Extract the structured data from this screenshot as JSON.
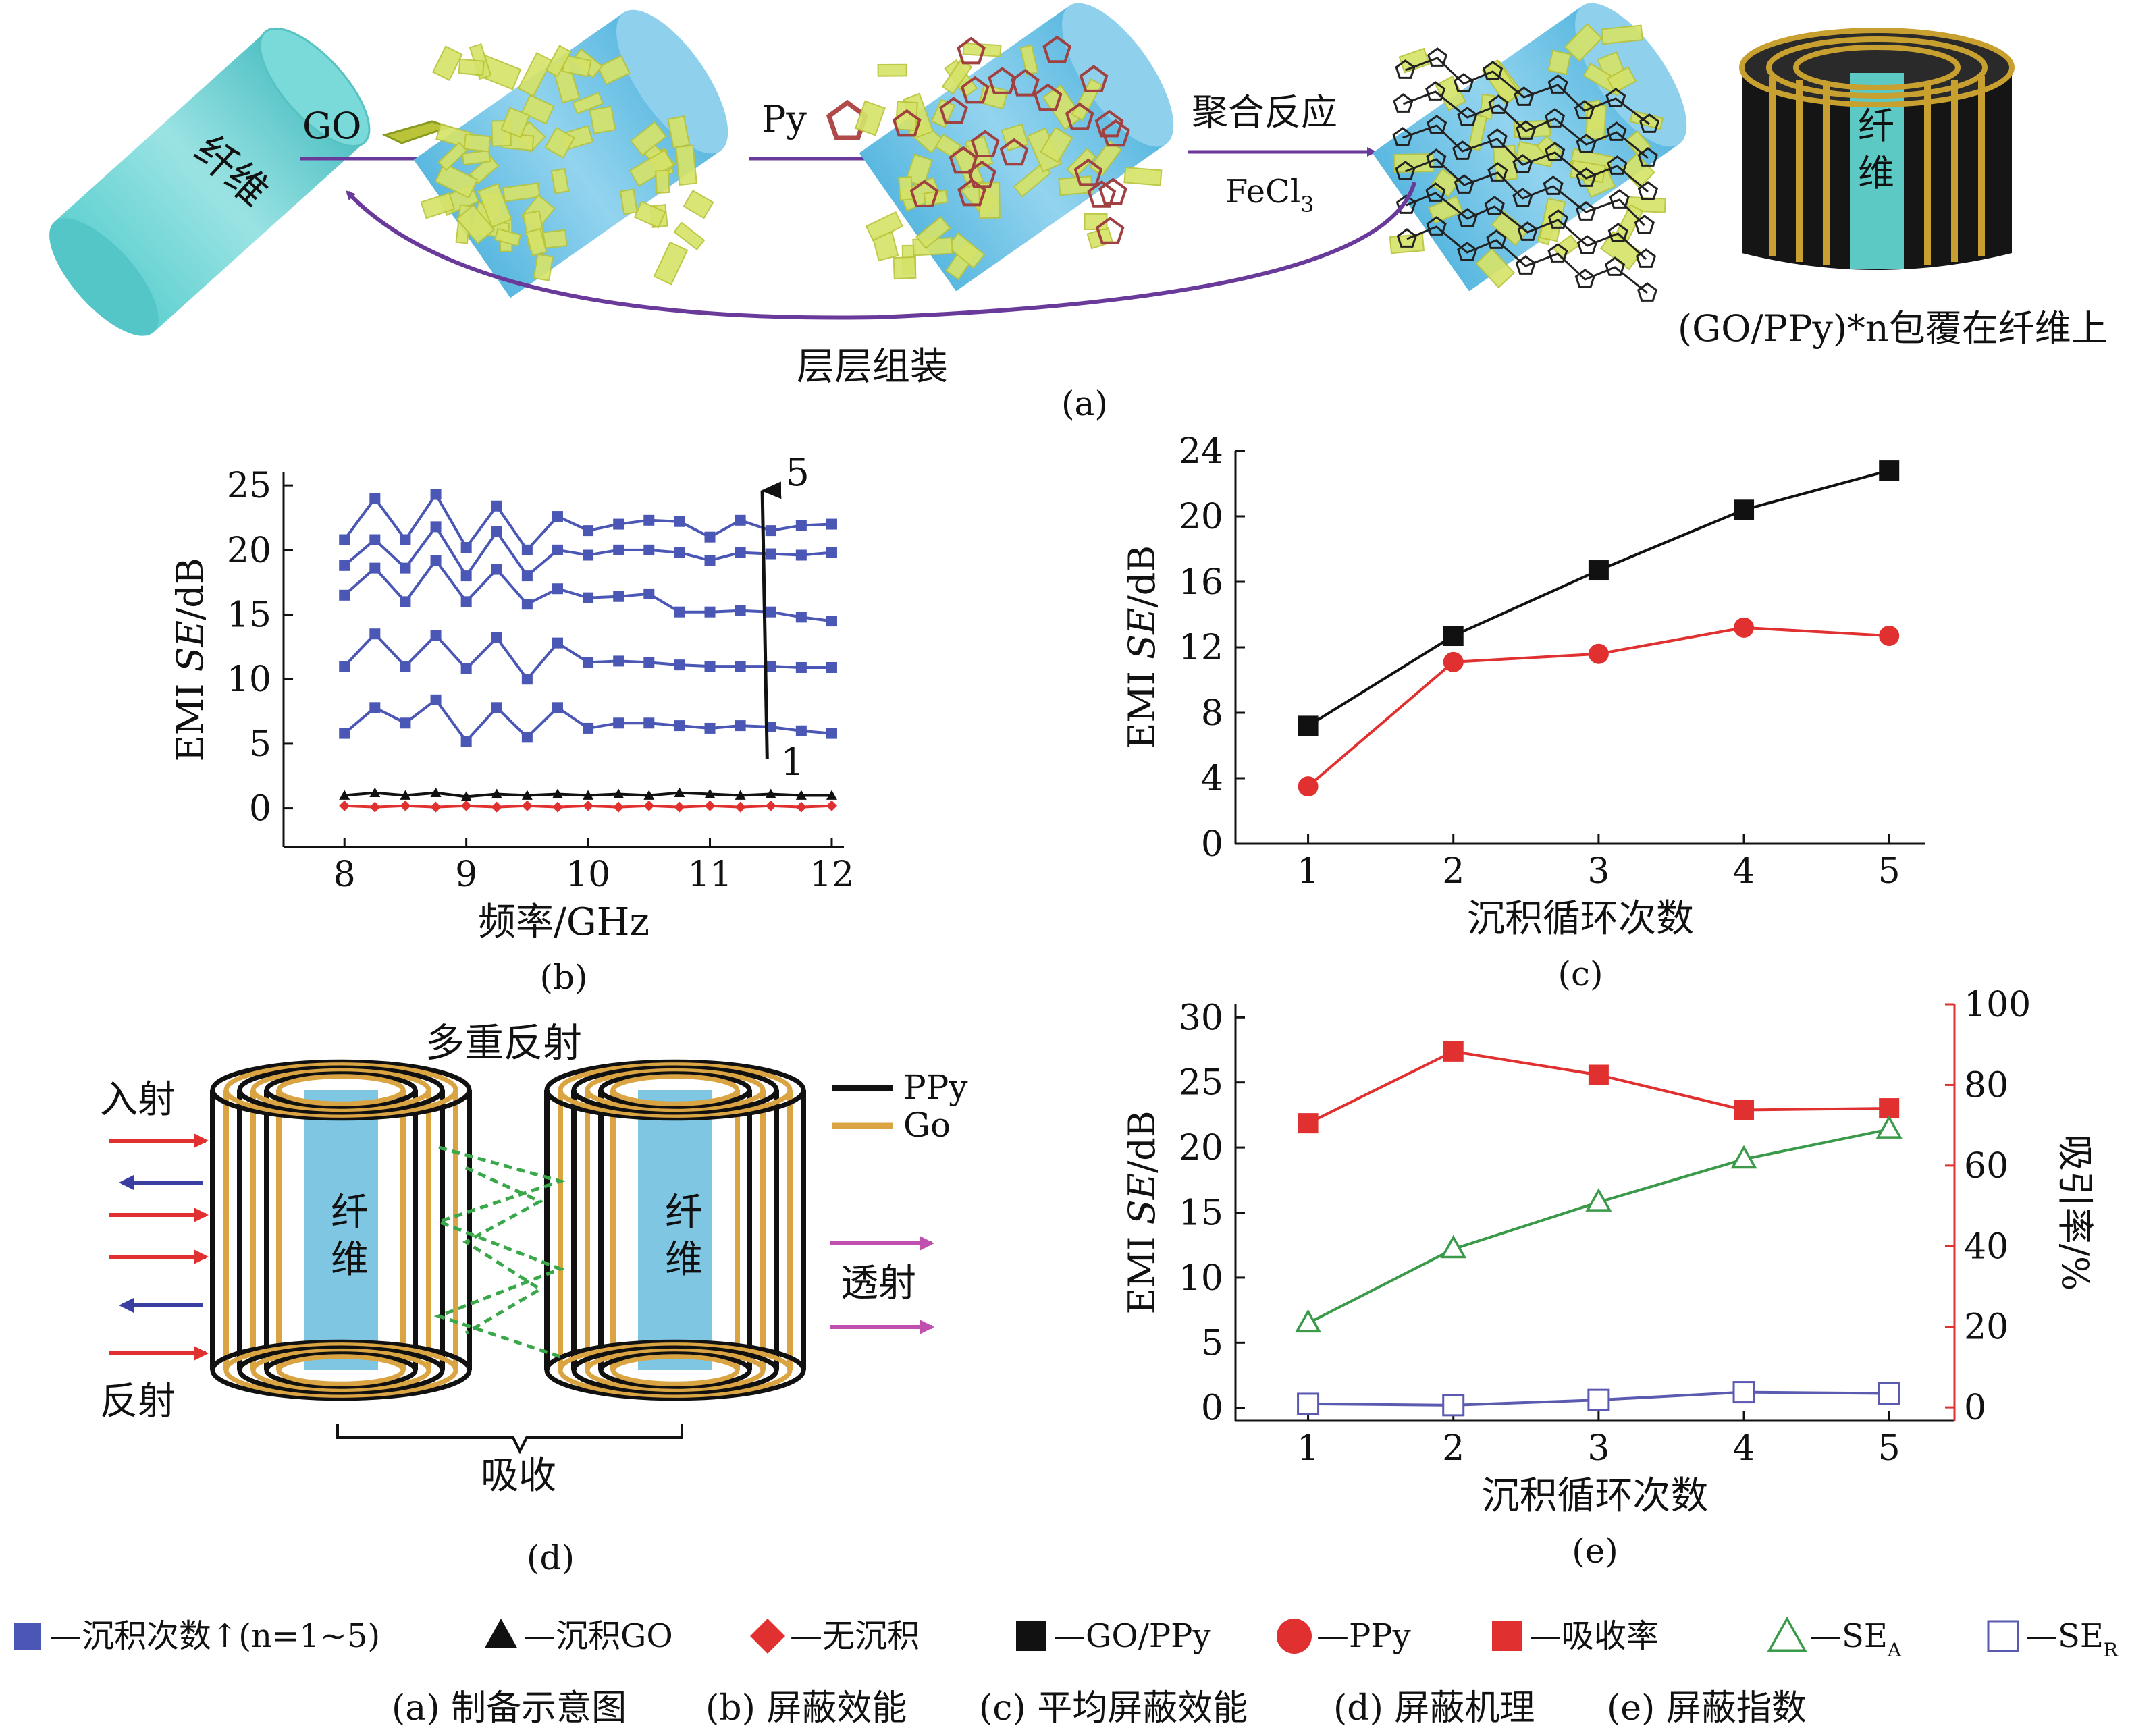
{
  "panel_a": {
    "caption": "(a)",
    "fiber_label": "纤维",
    "go_label": "GO",
    "py_label": "Py",
    "reaction_label": "聚合反应",
    "catalyst_label": "FeCl",
    "catalyst_sub": "3",
    "lbl_label": "层层组装",
    "coating_label": "(GO/PPy)*n包覆在纤维上",
    "core_label": "纤维"
  },
  "panel_d": {
    "caption": "(d)",
    "title": "多重反射",
    "incident": "入射",
    "reflect": "反射",
    "transmit": "透射",
    "absorb": "吸收",
    "fiber_left": "纤维",
    "fiber_right": "纤维",
    "legend_ppy": "PPy",
    "legend_go": "Go",
    "colors": {
      "ppy": "#111111",
      "go": "#d9a441",
      "fiber": "#7fc6e3",
      "arrow_in": "#e03030",
      "arrow_back": "#3a3ea0",
      "arrow_out": "#c04fb0",
      "inner_wave": "#3aa84a"
    }
  },
  "legend_row": {
    "items": [
      {
        "marker": "square-filled-blue",
        "text": "—沉积次数↑(n=1~5)"
      },
      {
        "marker": "triangle-filled-black",
        "text": "—沉积GO"
      },
      {
        "marker": "diamond-filled-red",
        "text": "—无沉积"
      },
      {
        "marker": "square-filled-black",
        "text": "—GO/PPy"
      },
      {
        "marker": "circle-filled-red",
        "text": "—PPy"
      },
      {
        "marker": "square-filled-red",
        "text": "—吸收率"
      },
      {
        "marker": "triangle-open-green",
        "text": "—SE",
        "sub": "A"
      },
      {
        "marker": "square-open-blue",
        "text": "—SE",
        "sub": "R"
      }
    ]
  },
  "captions_row": [
    "(a) 制备示意图",
    "(b) 屏蔽效能",
    "(c) 平均屏蔽效能",
    "(d) 屏蔽机理",
    "(e) 屏蔽指数"
  ],
  "chart_data": [
    {
      "id": "b",
      "type": "line",
      "caption": "(b)",
      "xlabel": "频率/GHz",
      "ylabel_pre": "EMI ",
      "ylabel_it": "SE",
      "ylabel_post": "/dB",
      "xlim": [
        7.5,
        12.1
      ],
      "ylim": [
        -3,
        26
      ],
      "xticks": [
        8,
        9,
        10,
        11,
        12
      ],
      "yticks": [
        0,
        5,
        10,
        15,
        20,
        25
      ],
      "arrow_top_label": "5",
      "arrow_bottom_label": "1",
      "x": [
        8.0,
        8.25,
        8.5,
        8.75,
        9.0,
        9.25,
        9.5,
        9.75,
        10.0,
        10.25,
        10.5,
        10.75,
        11.0,
        11.25,
        11.5,
        11.75,
        12.0
      ],
      "series": [
        {
          "name": "5",
          "color": "#4a57b5",
          "marker": "square",
          "values": [
            20.8,
            24.0,
            20.8,
            24.3,
            20.2,
            23.4,
            20.0,
            22.6,
            21.5,
            22.0,
            22.3,
            22.2,
            21.0,
            22.3,
            21.5,
            21.9,
            22.0
          ]
        },
        {
          "name": "4",
          "color": "#4a57b5",
          "marker": "square",
          "values": [
            18.8,
            20.8,
            18.6,
            21.8,
            18.0,
            21.4,
            18.0,
            20.0,
            19.6,
            20.0,
            20.0,
            19.8,
            19.2,
            19.8,
            19.7,
            19.6,
            19.8
          ]
        },
        {
          "name": "3",
          "color": "#4a57b5",
          "marker": "square",
          "values": [
            16.5,
            18.6,
            16.0,
            19.2,
            16.0,
            18.5,
            15.8,
            17.0,
            16.3,
            16.4,
            16.6,
            15.2,
            15.2,
            15.3,
            15.2,
            14.8,
            14.5
          ]
        },
        {
          "name": "2",
          "color": "#4a57b5",
          "marker": "square",
          "values": [
            11.0,
            13.5,
            11.0,
            13.4,
            10.8,
            13.2,
            10.0,
            12.8,
            11.3,
            11.4,
            11.3,
            11.1,
            11.0,
            11.0,
            11.0,
            10.9,
            10.9
          ]
        },
        {
          "name": "1",
          "color": "#4a57b5",
          "marker": "square",
          "values": [
            5.8,
            7.8,
            6.6,
            8.4,
            5.2,
            7.8,
            5.5,
            7.8,
            6.2,
            6.6,
            6.6,
            6.4,
            6.2,
            6.4,
            6.3,
            6.0,
            5.8
          ]
        },
        {
          "name": "沉积GO",
          "color": "#111111",
          "marker": "triangle",
          "values": [
            1.0,
            1.2,
            1.0,
            1.2,
            0.9,
            1.1,
            1.0,
            1.1,
            1.0,
            1.1,
            1.0,
            1.2,
            1.1,
            1.0,
            1.1,
            1.0,
            1.0
          ]
        },
        {
          "name": "无沉积",
          "color": "#e03030",
          "marker": "diamond",
          "values": [
            0.2,
            0.1,
            0.2,
            0.1,
            0.2,
            0.1,
            0.2,
            0.1,
            0.2,
            0.1,
            0.2,
            0.1,
            0.2,
            0.1,
            0.2,
            0.1,
            0.2
          ]
        }
      ]
    },
    {
      "id": "c",
      "type": "line",
      "caption": "(c)",
      "xlabel": "沉积循环次数",
      "ylabel_pre": "EMI ",
      "ylabel_it": "SE",
      "ylabel_post": "/dB",
      "xlim": [
        0.5,
        5.25
      ],
      "ylim": [
        0,
        24
      ],
      "xticks": [
        1,
        2,
        3,
        4,
        5
      ],
      "yticks": [
        0,
        4,
        8,
        12,
        16,
        20,
        24
      ],
      "x": [
        1,
        2,
        3,
        4,
        5
      ],
      "series": [
        {
          "name": "GO/PPy",
          "color": "#111111",
          "marker": "square",
          "values": [
            7.2,
            12.7,
            16.7,
            20.4,
            22.8
          ]
        },
        {
          "name": "PPy",
          "color": "#e03030",
          "marker": "circle",
          "values": [
            3.5,
            11.1,
            11.6,
            13.2,
            12.7
          ]
        }
      ]
    },
    {
      "id": "e",
      "type": "line",
      "caption": "(e)",
      "xlabel": "沉积循环次数",
      "ylabel_pre": "EMI ",
      "ylabel_it": "SE",
      "ylabel_post": "/dB",
      "y2label": "吸引率/%",
      "xlim": [
        0.5,
        5.45
      ],
      "ylim": [
        -1,
        31
      ],
      "y2lim": [
        -3.33,
        100
      ],
      "xticks": [
        1,
        2,
        3,
        4,
        5
      ],
      "yticks": [
        0,
        5,
        10,
        15,
        20,
        25,
        30
      ],
      "y2ticks": [
        0,
        20,
        40,
        60,
        80,
        100
      ],
      "x": [
        1,
        2,
        3,
        4,
        5
      ],
      "series": [
        {
          "name": "吸收率",
          "axis": "right",
          "color": "#e03030",
          "marker": "square",
          "values": [
            70.5,
            88.3,
            82.5,
            73.8,
            74.2
          ]
        },
        {
          "name": "SE_A",
          "axis": "left",
          "color": "#3a9a4a",
          "marker": "triangle-open",
          "values": [
            6.5,
            12.2,
            15.8,
            19.1,
            21.4
          ]
        },
        {
          "name": "SE_R",
          "axis": "left",
          "color": "#5a5ab0",
          "marker": "square-open",
          "values": [
            0.3,
            0.2,
            0.6,
            1.2,
            1.1
          ]
        }
      ]
    }
  ]
}
